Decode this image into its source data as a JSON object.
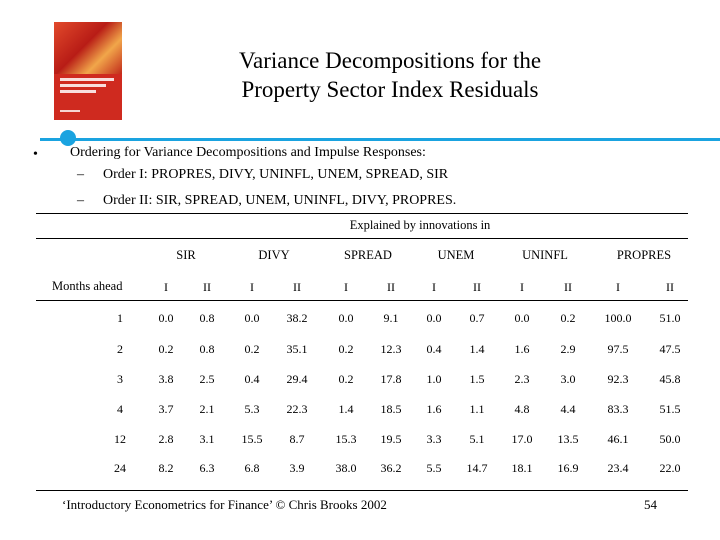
{
  "title": [
    "Variance Decompositions for the",
    "Property Sector Index Residuals"
  ],
  "bullet": "Ordering for Variance Decompositions and Impulse Responses:",
  "sub_items": [
    "Order I: PROPRES, DIVY, UNINFL, UNEM, SPREAD, SIR",
    "Order II: SIR, SPREAD, UNEM, UNINFL, DIVY, PROPRES."
  ],
  "table": {
    "caption": "Explained by innovations in",
    "groups": [
      "SIR",
      "DIVY",
      "SPREAD",
      "UNEM",
      "UNINFL",
      "PROPRES"
    ],
    "row_header": "Months ahead",
    "sub_headers": [
      "I",
      "II",
      "I",
      "II",
      "I",
      "II",
      "I",
      "II",
      "I",
      "II",
      "I",
      "II"
    ],
    "rows": [
      {
        "month": "1",
        "values": [
          "0.0",
          "0.8",
          "0.0",
          "38.2",
          "0.0",
          "9.1",
          "0.0",
          "0.7",
          "0.0",
          "0.2",
          "100.0",
          "51.0"
        ]
      },
      {
        "month": "2",
        "values": [
          "0.2",
          "0.8",
          "0.2",
          "35.1",
          "0.2",
          "12.3",
          "0.4",
          "1.4",
          "1.6",
          "2.9",
          "97.5",
          "47.5"
        ]
      },
      {
        "month": "3",
        "values": [
          "3.8",
          "2.5",
          "0.4",
          "29.4",
          "0.2",
          "17.8",
          "1.0",
          "1.5",
          "2.3",
          "3.0",
          "92.3",
          "45.8"
        ]
      },
      {
        "month": "4",
        "values": [
          "3.7",
          "2.1",
          "5.3",
          "22.3",
          "1.4",
          "18.5",
          "1.6",
          "1.1",
          "4.8",
          "4.4",
          "83.3",
          "51.5"
        ]
      },
      {
        "month": "12",
        "values": [
          "2.8",
          "3.1",
          "15.5",
          "8.7",
          "15.3",
          "19.5",
          "3.3",
          "5.1",
          "17.0",
          "13.5",
          "46.1",
          "50.0"
        ]
      },
      {
        "month": "24",
        "values": [
          "8.2",
          "6.3",
          "6.8",
          "3.9",
          "38.0",
          "36.2",
          "5.5",
          "14.7",
          "18.1",
          "16.9",
          "23.4",
          "22.0"
        ]
      }
    ]
  },
  "footer": {
    "citation": "‘Introductory Econometrics for Finance’ © Chris Brooks 2002",
    "page": "54"
  },
  "colors": {
    "accent": "#1aa3e0",
    "book_cover": "#cf2a1f"
  },
  "icons": {
    "bullet": "bullet-dot",
    "book": "book-cover-thumbnail"
  }
}
